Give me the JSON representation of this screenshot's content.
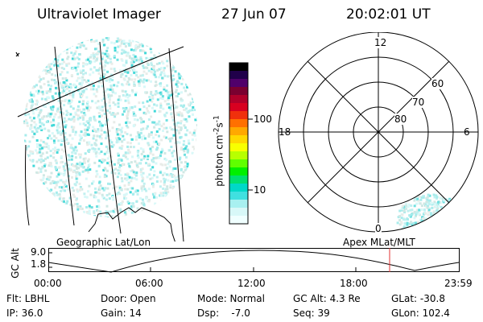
{
  "header": {
    "instrument": "Ultraviolet Imager",
    "date": "27 Jun 07",
    "time": "20:02:01 UT"
  },
  "colorbar": {
    "unit_prefix": "photon cm",
    "unit_exp1": "-2",
    "unit_s": "s",
    "unit_exp2": "-1",
    "tick_labels": [
      "100",
      "10"
    ],
    "colors": [
      "#000000",
      "#20004a",
      "#50006a",
      "#7a0030",
      "#b0002a",
      "#d80020",
      "#f0300c",
      "#ff7000",
      "#ffa800",
      "#ffd800",
      "#f8ff00",
      "#b8ff00",
      "#60ff00",
      "#00f000",
      "#00e070",
      "#00d8c8",
      "#40e0e0",
      "#a8f0f0",
      "#d8f8f8",
      "#f0ffff"
    ]
  },
  "left_map": {
    "label": "Geographic Lat/Lon"
  },
  "polar": {
    "label": "Apex MLat/MLT",
    "mlt_labels": [
      "12",
      "18",
      "6",
      "0"
    ],
    "lat_labels": [
      "60",
      "70",
      "80"
    ]
  },
  "timeline": {
    "axis_label": "GC Alt",
    "y_ticks": [
      "9.0",
      "1.8"
    ],
    "x_ticks": [
      "00:00",
      "06:00",
      "12:00",
      "18:00",
      "23:59"
    ],
    "marker_color": "#e03030"
  },
  "info": {
    "flt": "Flt: LBHL",
    "ip": "IP: 36.0",
    "door": "Door: Open",
    "gain": "Gain: 14",
    "mode": "Mode: Normal",
    "dsp": "Dsp:    -7.0",
    "gcalt": "GC Alt: 4.3 Re",
    "seq": "Seq: 39",
    "glat": "GLat: -30.8",
    "glon": "GLon: 102.4"
  }
}
